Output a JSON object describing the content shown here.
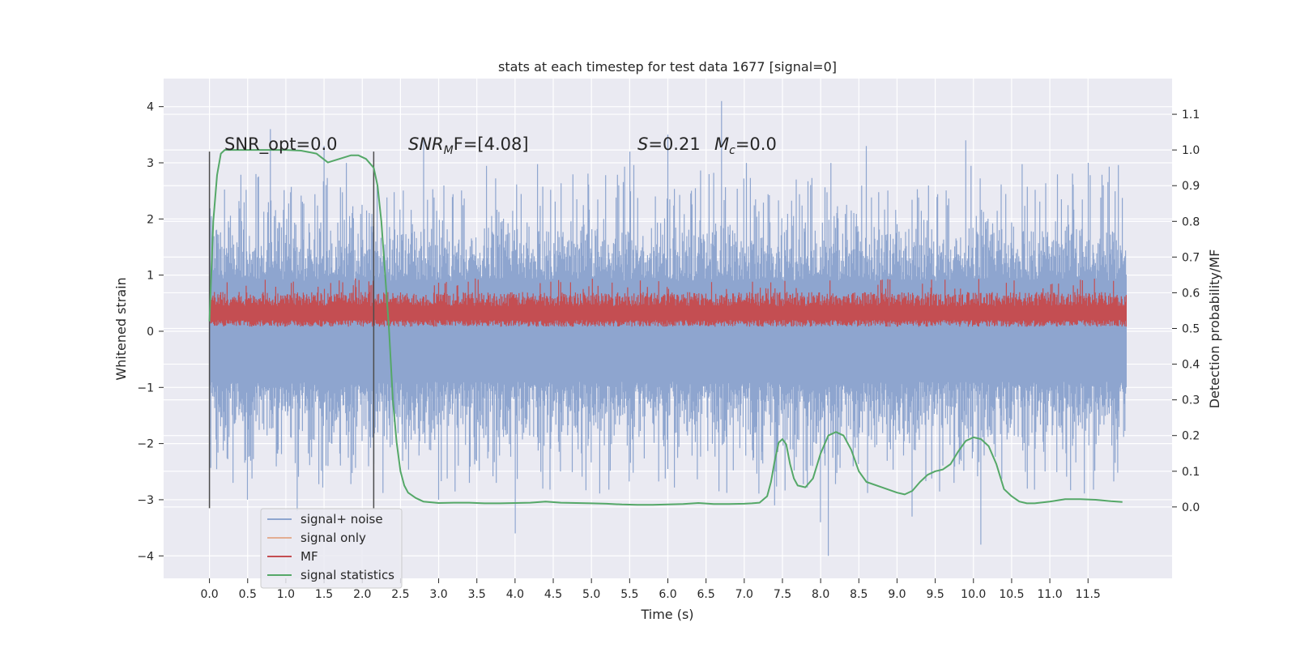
{
  "chart_data": {
    "type": "line",
    "title": "stats at each timestep for test data 1677 [signal=0]",
    "xlabel": "Time (s)",
    "ylabel_left": "Whitened strain",
    "ylabel_right": "Detection probability/MF",
    "xlim": [
      -0.6,
      12.6
    ],
    "ylim_left": [
      -4.4,
      4.5
    ],
    "ylim_right": [
      -0.2,
      1.2
    ],
    "x_ticks": [
      0.0,
      0.5,
      1.0,
      1.5,
      2.0,
      2.5,
      3.0,
      3.5,
      4.0,
      4.5,
      5.0,
      5.5,
      6.0,
      6.5,
      7.0,
      7.5,
      8.0,
      8.5,
      9.0,
      9.5,
      10.0,
      10.5,
      11.0,
      11.5
    ],
    "x_tick_labels": [
      "0.0",
      "0.5",
      "1.0",
      "1.5",
      "2.0",
      "2.5",
      "3.0",
      "3.5",
      "4.0",
      "4.5",
      "5.0",
      "5.5",
      "6.0",
      "6.5",
      "7.0",
      "7.5",
      "8.0",
      "8.5",
      "9.0",
      "9.5",
      "10.0",
      "10.5",
      "11.0",
      "11.5"
    ],
    "y_left_ticks": [
      4,
      3,
      2,
      1,
      0,
      -1,
      -2,
      -3,
      -4
    ],
    "y_left_tick_labels": [
      "4",
      "3",
      "2",
      "1",
      "0",
      "−1",
      "−2",
      "−3",
      "−4"
    ],
    "y_right_ticks": [
      1.1,
      1.0,
      0.9,
      0.8,
      0.7,
      0.6,
      0.5,
      0.4,
      0.3,
      0.2,
      0.1,
      0.0
    ],
    "y_right_tick_labels": [
      "1.1",
      "1.0",
      "0.9",
      "0.8",
      "0.7",
      "0.6",
      "0.5",
      "0.4",
      "0.3",
      "0.2",
      "0.1",
      "0.0"
    ],
    "grid": true,
    "legend_position": "lower-left",
    "series": [
      {
        "name": "signal+ noise",
        "color": "#8ea5cf",
        "axis": "left",
        "x_range": [
          0.0,
          12.0
        ],
        "approx_range": [
          -4.0,
          4.1
        ],
        "typical_band": [
          -2.2,
          2.4
        ],
        "spikes": [
          [
            0.5,
            -3.0
          ],
          [
            0.8,
            3.6
          ],
          [
            1.15,
            -3.2
          ],
          [
            1.5,
            3.3
          ],
          [
            2.8,
            3.4
          ],
          [
            3.0,
            -3.0
          ],
          [
            4.0,
            -3.6
          ],
          [
            5.5,
            3.2
          ],
          [
            6.0,
            3.5
          ],
          [
            6.7,
            4.1
          ],
          [
            7.4,
            -3.1
          ],
          [
            8.0,
            -3.4
          ],
          [
            8.1,
            -4.0
          ],
          [
            8.6,
            3.3
          ],
          [
            9.2,
            -3.3
          ],
          [
            9.9,
            3.4
          ],
          [
            10.1,
            -3.8
          ],
          [
            11.5,
            3.0
          ]
        ]
      },
      {
        "name": "signal only",
        "color": "#dd8452",
        "axis": "left",
        "values": []
      },
      {
        "name": "MF",
        "color": "#c44e52",
        "axis": "left",
        "x_range": [
          0.0,
          12.0
        ],
        "approx_range": [
          0.05,
          0.95
        ]
      },
      {
        "name": "signal statistics",
        "color": "#55a868",
        "axis": "right",
        "x": [
          0.0,
          0.05,
          0.1,
          0.15,
          0.2,
          0.3,
          0.5,
          0.8,
          1.0,
          1.2,
          1.4,
          1.55,
          1.7,
          1.85,
          1.95,
          2.05,
          2.15,
          2.2,
          2.25,
          2.3,
          2.35,
          2.4,
          2.45,
          2.5,
          2.55,
          2.6,
          2.7,
          2.8,
          3.0,
          3.2,
          3.4,
          3.6,
          3.8,
          4.0,
          4.2,
          4.4,
          4.6,
          4.8,
          5.0,
          5.2,
          5.4,
          5.6,
          5.8,
          6.0,
          6.2,
          6.4,
          6.6,
          6.8,
          7.0,
          7.1,
          7.2,
          7.3,
          7.35,
          7.4,
          7.45,
          7.5,
          7.55,
          7.6,
          7.65,
          7.7,
          7.8,
          7.9,
          8.0,
          8.1,
          8.2,
          8.3,
          8.4,
          8.5,
          8.6,
          8.8,
          9.0,
          9.1,
          9.2,
          9.3,
          9.4,
          9.5,
          9.6,
          9.7,
          9.8,
          9.9,
          10.0,
          10.1,
          10.2,
          10.3,
          10.4,
          10.5,
          10.6,
          10.7,
          10.8,
          11.0,
          11.2,
          11.4,
          11.6,
          11.8,
          11.95
        ],
        "values": [
          0.52,
          0.8,
          0.93,
          0.99,
          1.0,
          1.0,
          1.0,
          1.0,
          1.0,
          0.998,
          0.99,
          0.965,
          0.975,
          0.985,
          0.985,
          0.975,
          0.95,
          0.9,
          0.8,
          0.65,
          0.5,
          0.3,
          0.18,
          0.1,
          0.06,
          0.04,
          0.025,
          0.015,
          0.011,
          0.012,
          0.012,
          0.01,
          0.01,
          0.011,
          0.012,
          0.015,
          0.012,
          0.011,
          0.01,
          0.009,
          0.007,
          0.006,
          0.006,
          0.007,
          0.008,
          0.011,
          0.008,
          0.008,
          0.009,
          0.01,
          0.012,
          0.03,
          0.07,
          0.13,
          0.18,
          0.19,
          0.175,
          0.12,
          0.08,
          0.06,
          0.055,
          0.08,
          0.15,
          0.2,
          0.21,
          0.2,
          0.16,
          0.1,
          0.07,
          0.055,
          0.04,
          0.035,
          0.045,
          0.07,
          0.09,
          0.1,
          0.105,
          0.12,
          0.155,
          0.185,
          0.195,
          0.19,
          0.17,
          0.12,
          0.05,
          0.03,
          0.015,
          0.01,
          0.01,
          0.015,
          0.022,
          0.022,
          0.02,
          0.016,
          0.014
        ]
      }
    ],
    "vertical_markers": [
      0.0,
      2.15
    ],
    "annotations": [
      {
        "id": "snr-opt",
        "text": "SNR_opt=0.0"
      },
      {
        "id": "snr-mf",
        "text": "SNR",
        "sub": "M",
        "rest": "F=[4.08]"
      },
      {
        "id": "s-value",
        "text": "S",
        "rest": "=0.21"
      },
      {
        "id": "mc-value",
        "text": "M",
        "sub": "c",
        "rest": "=0.0"
      }
    ],
    "style": {
      "plot_background": "#eaeaf2",
      "grid_color": "#ffffff",
      "marker_line_color": "#4c4c4c"
    }
  }
}
